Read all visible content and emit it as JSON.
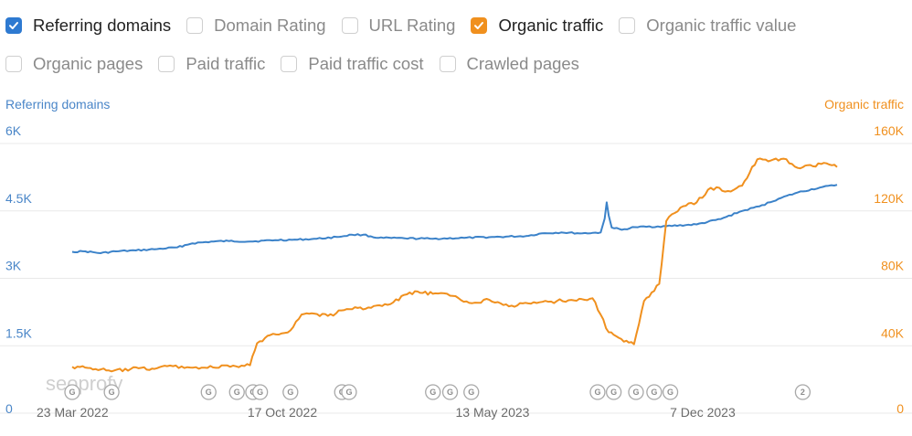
{
  "metrics": [
    {
      "label": "Referring domains",
      "checked": true,
      "color": "#2e7ad1"
    },
    {
      "label": "Domain Rating",
      "checked": false
    },
    {
      "label": "URL Rating",
      "checked": false
    },
    {
      "label": "Organic traffic",
      "checked": true,
      "color": "#f0901e"
    },
    {
      "label": "Organic traffic value",
      "checked": false
    },
    {
      "label": "Organic pages",
      "checked": false
    },
    {
      "label": "Paid traffic",
      "checked": false
    },
    {
      "label": "Paid traffic cost",
      "checked": false
    },
    {
      "label": "Crawled pages",
      "checked": false
    }
  ],
  "watermark": "seoprofy",
  "chart_data": {
    "type": "line",
    "x_range": [
      "2022-03-23",
      "2024-04-18"
    ],
    "xticks": [
      {
        "label": "23 Mar 2022",
        "date": "2022-03-23"
      },
      {
        "label": "17 Oct 2022",
        "date": "2022-10-17"
      },
      {
        "label": "13 May 2023",
        "date": "2023-05-13"
      },
      {
        "label": "7 Dec 2023",
        "date": "2023-12-07"
      }
    ],
    "y_left": {
      "label": "Referring domains",
      "color": "#4a86c8",
      "range": [
        0,
        6000
      ],
      "ticks": [
        "0",
        "1.5K",
        "3K",
        "4.5K",
        "6K"
      ]
    },
    "y_right": {
      "label": "Organic traffic",
      "color": "#f0901e",
      "range": [
        0,
        160000
      ],
      "ticks": [
        "0",
        "40K",
        "80K",
        "120K",
        "160K"
      ]
    },
    "grid": true,
    "series": [
      {
        "name": "Referring domains",
        "axis": "left",
        "color": "#3b82c9",
        "points": [
          [
            "2022-03-23",
            3590
          ],
          [
            "2022-04-05",
            3600
          ],
          [
            "2022-04-20",
            3560
          ],
          [
            "2022-05-05",
            3600
          ],
          [
            "2022-05-25",
            3620
          ],
          [
            "2022-06-15",
            3650
          ],
          [
            "2022-07-05",
            3690
          ],
          [
            "2022-07-20",
            3780
          ],
          [
            "2022-08-10",
            3820
          ],
          [
            "2022-08-25",
            3830
          ],
          [
            "2022-09-15",
            3820
          ],
          [
            "2022-10-10",
            3850
          ],
          [
            "2022-11-01",
            3860
          ],
          [
            "2022-11-20",
            3880
          ],
          [
            "2022-12-10",
            3920
          ],
          [
            "2022-12-25",
            3970
          ],
          [
            "2023-01-05",
            3970
          ],
          [
            "2023-01-20",
            3900
          ],
          [
            "2023-02-15",
            3890
          ],
          [
            "2023-03-15",
            3880
          ],
          [
            "2023-04-15",
            3900
          ],
          [
            "2023-05-15",
            3920
          ],
          [
            "2023-06-15",
            3940
          ],
          [
            "2023-07-01",
            4000
          ],
          [
            "2023-07-20",
            4020
          ],
          [
            "2023-08-10",
            4000
          ],
          [
            "2023-08-28",
            4020
          ],
          [
            "2023-09-01",
            4330
          ],
          [
            "2023-09-03",
            4690
          ],
          [
            "2023-09-05",
            4400
          ],
          [
            "2023-09-08",
            4130
          ],
          [
            "2023-09-18",
            4080
          ],
          [
            "2023-10-01",
            4140
          ],
          [
            "2023-11-01",
            4160
          ],
          [
            "2023-12-01",
            4200
          ],
          [
            "2023-12-25",
            4320
          ],
          [
            "2024-01-15",
            4500
          ],
          [
            "2024-02-01",
            4600
          ],
          [
            "2024-02-20",
            4770
          ],
          [
            "2024-03-10",
            4910
          ],
          [
            "2024-04-01",
            5020
          ],
          [
            "2024-04-18",
            5080
          ]
        ]
      },
      {
        "name": "Organic traffic",
        "axis": "right",
        "color": "#f0901e",
        "points": [
          [
            "2022-03-23",
            27500
          ],
          [
            "2022-04-10",
            26800
          ],
          [
            "2022-05-01",
            24800
          ],
          [
            "2022-05-20",
            26200
          ],
          [
            "2022-06-10",
            26400
          ],
          [
            "2022-06-25",
            27900
          ],
          [
            "2022-07-15",
            27300
          ],
          [
            "2022-08-01",
            27000
          ],
          [
            "2022-09-01",
            27800
          ],
          [
            "2022-09-15",
            28400
          ],
          [
            "2022-09-22",
            41500
          ],
          [
            "2022-10-05",
            46300
          ],
          [
            "2022-10-25",
            49100
          ],
          [
            "2022-11-05",
            58500
          ],
          [
            "2022-11-15",
            59200
          ],
          [
            "2022-12-01",
            57700
          ],
          [
            "2022-12-20",
            61800
          ],
          [
            "2023-01-10",
            62700
          ],
          [
            "2023-02-01",
            64700
          ],
          [
            "2023-02-20",
            71600
          ],
          [
            "2023-03-05",
            71300
          ],
          [
            "2023-03-20",
            71000
          ],
          [
            "2023-04-01",
            69700
          ],
          [
            "2023-04-20",
            65400
          ],
          [
            "2023-05-10",
            67200
          ],
          [
            "2023-06-01",
            63800
          ],
          [
            "2023-06-20",
            65000
          ],
          [
            "2023-07-10",
            66200
          ],
          [
            "2023-07-30",
            67200
          ],
          [
            "2023-08-20",
            68200
          ],
          [
            "2023-09-05",
            48000
          ],
          [
            "2023-09-20",
            42400
          ],
          [
            "2023-09-30",
            40900
          ],
          [
            "2023-10-10",
            66600
          ],
          [
            "2023-10-25",
            76700
          ],
          [
            "2023-11-01",
            114000
          ],
          [
            "2023-11-15",
            122000
          ],
          [
            "2023-12-01",
            125000
          ],
          [
            "2023-12-15",
            133700
          ],
          [
            "2024-01-01",
            131800
          ],
          [
            "2024-01-15",
            135000
          ],
          [
            "2024-01-30",
            150600
          ],
          [
            "2024-02-10",
            149400
          ],
          [
            "2024-02-25",
            151000
          ],
          [
            "2024-03-10",
            145500
          ],
          [
            "2024-03-25",
            146500
          ],
          [
            "2024-04-05",
            148500
          ],
          [
            "2024-04-18",
            146000
          ]
        ]
      }
    ],
    "annotations": [
      {
        "date": "2022-03-23",
        "label": "G"
      },
      {
        "date": "2022-05-01",
        "label": "G"
      },
      {
        "date": "2022-08-05",
        "label": "G"
      },
      {
        "date": "2022-09-02",
        "label": "G"
      },
      {
        "date": "2022-09-18",
        "label": "G"
      },
      {
        "date": "2022-09-25",
        "label": "G"
      },
      {
        "date": "2022-10-25",
        "label": "G"
      },
      {
        "date": "2022-12-15",
        "label": "G"
      },
      {
        "date": "2022-12-22",
        "label": "G"
      },
      {
        "date": "2023-03-15",
        "label": "G"
      },
      {
        "date": "2023-04-01",
        "label": "G"
      },
      {
        "date": "2023-04-22",
        "label": "G"
      },
      {
        "date": "2023-08-25",
        "label": "G"
      },
      {
        "date": "2023-09-10",
        "label": "G"
      },
      {
        "date": "2023-10-02",
        "label": "G"
      },
      {
        "date": "2023-10-20",
        "label": "G"
      },
      {
        "date": "2023-11-05",
        "label": "G"
      },
      {
        "date": "2024-03-15",
        "label": "2"
      }
    ]
  }
}
